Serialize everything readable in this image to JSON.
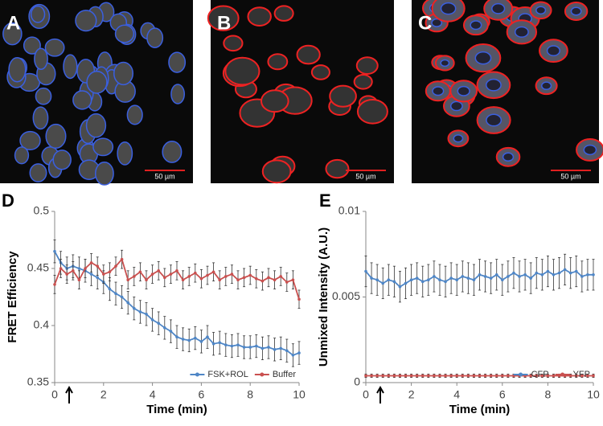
{
  "panels": [
    {
      "label": "A",
      "scale_bar": "50 µm"
    },
    {
      "label": "B",
      "scale_bar": "50 µm"
    },
    {
      "label": "C",
      "scale_bar": "50 µm"
    }
  ],
  "chart_data": [
    {
      "type": "line",
      "label": "D",
      "x_label": "Time (min)",
      "y_label": "FRET Efficiency",
      "x": [
        0,
        0.25,
        0.5,
        0.75,
        1,
        1.25,
        1.5,
        1.75,
        2,
        2.25,
        2.5,
        2.75,
        3,
        3.25,
        3.5,
        3.75,
        4,
        4.25,
        4.5,
        4.75,
        5,
        5.25,
        5.5,
        5.75,
        6,
        6.25,
        6.5,
        6.75,
        7,
        7.25,
        7.5,
        7.75,
        8,
        8.25,
        8.5,
        8.75,
        9,
        9.25,
        9.5,
        9.75,
        10
      ],
      "series": [
        {
          "name": "FSK+ROL",
          "color": "#4f86c6",
          "error": 0.01,
          "values": [
            0.465,
            0.455,
            0.45,
            0.452,
            0.45,
            0.448,
            0.445,
            0.442,
            0.438,
            0.432,
            0.428,
            0.425,
            0.42,
            0.415,
            0.412,
            0.41,
            0.405,
            0.402,
            0.398,
            0.395,
            0.39,
            0.388,
            0.387,
            0.389,
            0.386,
            0.39,
            0.384,
            0.385,
            0.383,
            0.382,
            0.383,
            0.381,
            0.381,
            0.382,
            0.38,
            0.381,
            0.379,
            0.38,
            0.378,
            0.374,
            0.376
          ]
        },
        {
          "name": "Buffer",
          "color": "#c9504f",
          "error": 0.008,
          "values": [
            0.436,
            0.45,
            0.445,
            0.448,
            0.44,
            0.45,
            0.455,
            0.452,
            0.445,
            0.447,
            0.452,
            0.458,
            0.44,
            0.443,
            0.447,
            0.44,
            0.445,
            0.448,
            0.442,
            0.445,
            0.448,
            0.44,
            0.443,
            0.446,
            0.441,
            0.444,
            0.447,
            0.44,
            0.443,
            0.445,
            0.44,
            0.442,
            0.444,
            0.441,
            0.439,
            0.442,
            0.44,
            0.443,
            0.438,
            0.44,
            0.423
          ]
        }
      ],
      "xlim": [
        0,
        10
      ],
      "xticks": [
        0,
        2,
        4,
        6,
        8,
        10
      ],
      "ylim": [
        0.35,
        0.5
      ],
      "yticks": [
        0.35,
        0.4,
        0.45,
        0.5
      ],
      "legend": "lower right"
    },
    {
      "type": "line",
      "label": "E",
      "x_label": "Time (min)",
      "y_label": "Unmixed Intensity (A.U.)",
      "x": [
        0,
        0.25,
        0.5,
        0.75,
        1,
        1.25,
        1.5,
        1.75,
        2,
        2.25,
        2.5,
        2.75,
        3,
        3.25,
        3.5,
        3.75,
        4,
        4.25,
        4.5,
        4.75,
        5,
        5.25,
        5.5,
        5.75,
        6,
        6.25,
        6.5,
        6.75,
        7,
        7.25,
        7.5,
        7.75,
        8,
        8.25,
        8.5,
        8.75,
        9,
        9.25,
        9.5,
        9.75,
        10
      ],
      "series": [
        {
          "name": "CFP",
          "color": "#4f86c6",
          "error": 0.0009,
          "values": [
            0.0065,
            0.0061,
            0.006,
            0.0058,
            0.006,
            0.0059,
            0.0056,
            0.0058,
            0.006,
            0.0061,
            0.0059,
            0.006,
            0.0062,
            0.006,
            0.0059,
            0.0061,
            0.006,
            0.0062,
            0.0061,
            0.006,
            0.0063,
            0.0062,
            0.0061,
            0.0063,
            0.006,
            0.0062,
            0.0064,
            0.0062,
            0.0063,
            0.0061,
            0.0064,
            0.0063,
            0.0065,
            0.0063,
            0.0064,
            0.0066,
            0.0064,
            0.0065,
            0.0062,
            0.0063,
            0.0063
          ]
        },
        {
          "name": "YFP",
          "color": "#c9504f",
          "error": 0.0001,
          "values": [
            0.0004,
            0.0004,
            0.0004,
            0.0004,
            0.0004,
            0.0004,
            0.0004,
            0.0004,
            0.0004,
            0.0004,
            0.0004,
            0.0004,
            0.0004,
            0.0004,
            0.0004,
            0.0004,
            0.0004,
            0.0004,
            0.0004,
            0.0004,
            0.0004,
            0.0004,
            0.0004,
            0.0004,
            0.0004,
            0.0004,
            0.0004,
            0.0004,
            0.0004,
            0.0004,
            0.0004,
            0.0004,
            0.0004,
            0.0004,
            0.0004,
            0.0004,
            0.0004,
            0.0004,
            0.0004,
            0.0004,
            0.0004
          ]
        }
      ],
      "xlim": [
        0,
        10
      ],
      "xticks": [
        0,
        2,
        4,
        6,
        8,
        10
      ],
      "ylim": [
        0,
        0.01
      ],
      "yticks": [
        0,
        0.005,
        0.01
      ],
      "legend": "lower right"
    }
  ]
}
